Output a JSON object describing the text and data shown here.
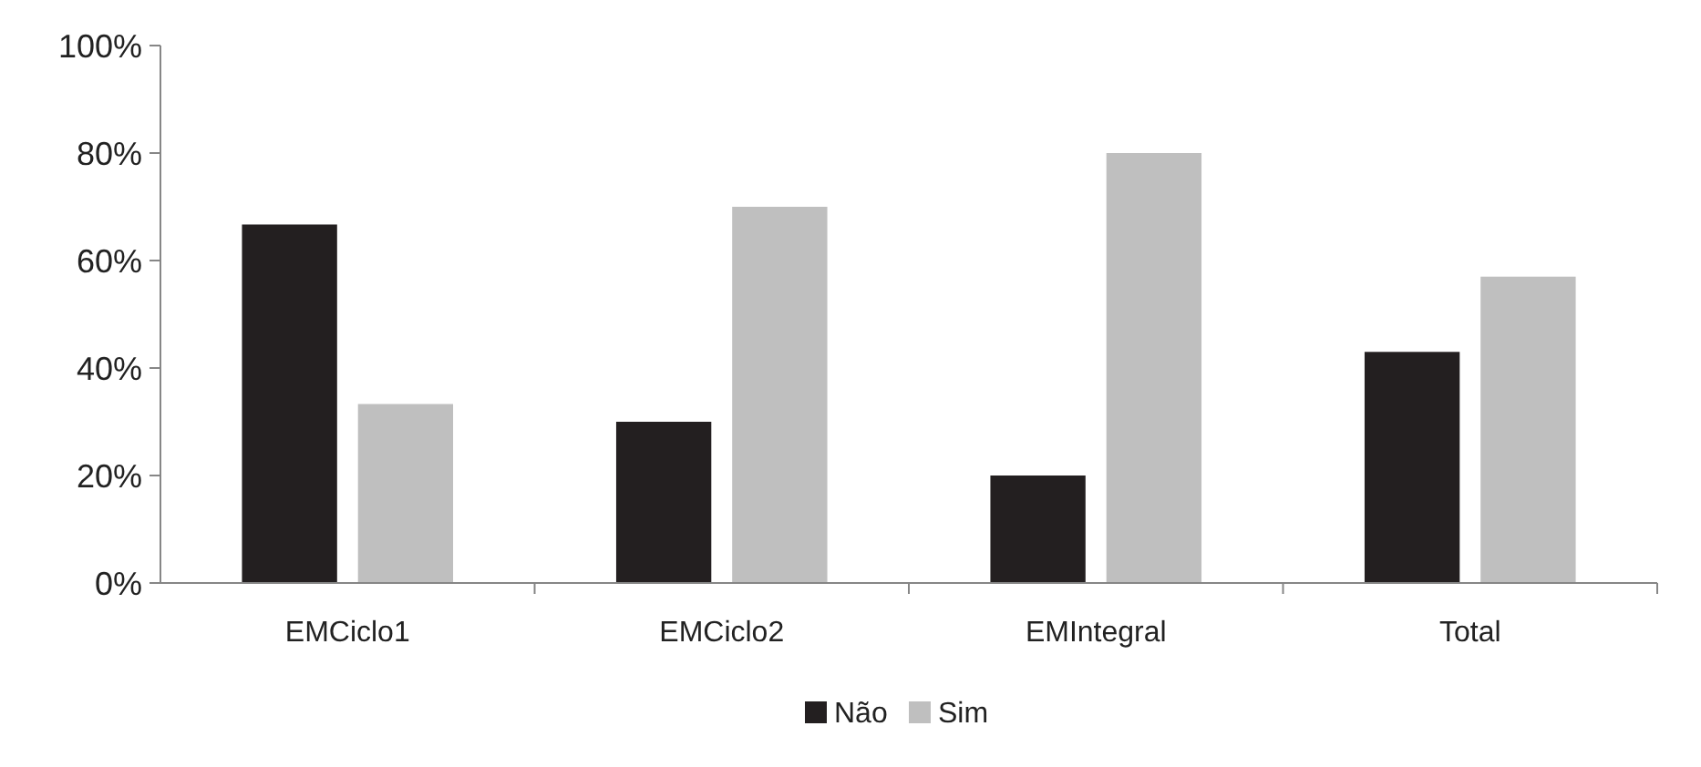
{
  "chart_data": {
    "type": "bar",
    "categories": [
      "EMCiclo1",
      "EMCiclo2",
      "EMIntegral",
      "Total"
    ],
    "series": [
      {
        "name": "Não",
        "color": "#231f20",
        "values": [
          66.7,
          30,
          20,
          43
        ]
      },
      {
        "name": "Sim",
        "color": "#bfbfbf",
        "values": [
          33.3,
          70,
          80,
          57
        ]
      }
    ],
    "ylim": [
      0,
      100
    ],
    "yticks": [
      {
        "value": 0,
        "label": "0%"
      },
      {
        "value": 20,
        "label": "20%"
      },
      {
        "value": 40,
        "label": "40%"
      },
      {
        "value": 60,
        "label": "60%"
      },
      {
        "value": 80,
        "label": "80%"
      },
      {
        "value": 100,
        "label": "100%"
      }
    ],
    "legend": "bottom"
  }
}
